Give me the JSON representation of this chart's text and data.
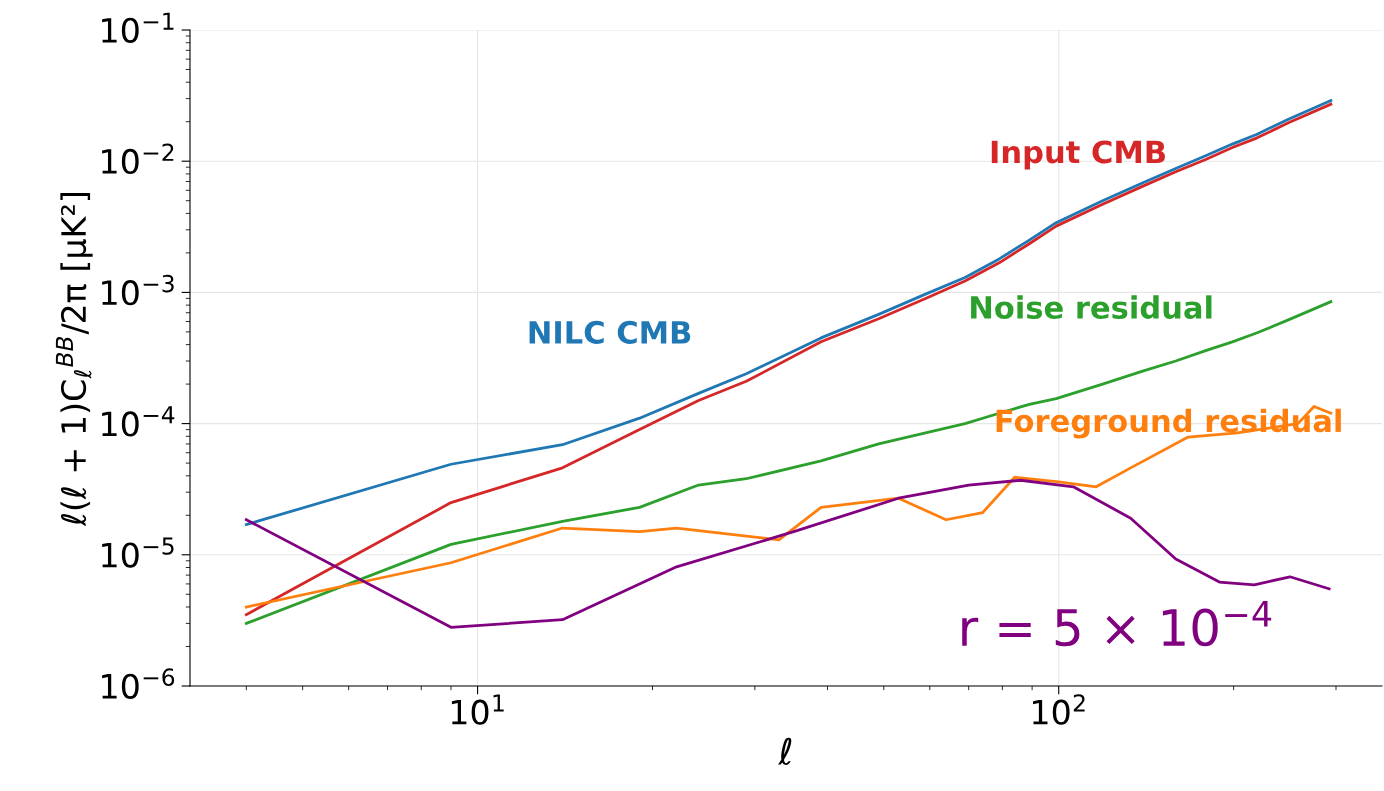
{
  "chart_data": {
    "type": "line",
    "log": "xy",
    "grid": true,
    "marker": "none",
    "line_style": "solid",
    "xlabel": "ℓ",
    "ylabel": "ℓ(ℓ + 1)C$_{ℓ}$$^{BB}$/2π [μK²]",
    "xlim": [
      3.2,
      360
    ],
    "ylim": [
      1e-06,
      0.1
    ],
    "xticks": [
      {
        "value": 10,
        "label": "10$^{1}$"
      },
      {
        "value": 100,
        "label": "10$^{2}$"
      }
    ],
    "yticks": [
      {
        "value": 1e-06,
        "label": "10$^{−6}$"
      },
      {
        "value": 1e-05,
        "label": "10$^{−5}$"
      },
      {
        "value": 0.0001,
        "label": "10$^{−4}$"
      },
      {
        "value": 0.001,
        "label": "10$^{−3}$"
      },
      {
        "value": 0.01,
        "label": "10$^{−2}$"
      },
      {
        "value": 0.1,
        "label": "10$^{−1}$"
      }
    ],
    "x": [
      4,
      9,
      14,
      19,
      24,
      29,
      39,
      49,
      59,
      69,
      79,
      89,
      99,
      119,
      139,
      159,
      179,
      199,
      219,
      249,
      294
    ],
    "series": [
      {
        "name": "Input CMB",
        "color": "#d62728",
        "values": [
          3.5e-06,
          2.5e-05,
          4.6e-05,
          9e-05,
          0.00015,
          0.00021,
          0.00042,
          0.00063,
          0.0009,
          0.00122,
          0.00168,
          0.00235,
          0.0032,
          0.0047,
          0.0064,
          0.0083,
          0.0103,
          0.0127,
          0.015,
          0.0197,
          0.0272
        ]
      },
      {
        "name": "NILC CMB",
        "color": "#1f77b4",
        "values": [
          1.7e-05,
          4.9e-05,
          6.9e-05,
          0.00011,
          0.00017,
          0.00024,
          0.00045,
          0.00068,
          0.00097,
          0.0013,
          0.0018,
          0.0025,
          0.0034,
          0.005,
          0.0068,
          0.0088,
          0.011,
          0.0135,
          0.016,
          0.021,
          0.029
        ]
      },
      {
        "name": "Noise residual",
        "color": "#2ca02c",
        "values": [
          3e-06,
          1.2e-05,
          1.8e-05,
          2.3e-05,
          3.4e-05,
          3.8e-05,
          5.2e-05,
          7e-05,
          8.5e-05,
          0.0001,
          0.00012,
          0.00014,
          0.000155,
          0.0002,
          0.00025,
          0.0003,
          0.00036,
          0.00042,
          0.00049,
          0.00062,
          0.00085
        ]
      },
      {
        "name": "Foreground residual",
        "color": "#ff7f0e",
        "x": [
          4,
          9,
          14,
          19,
          22,
          33,
          39,
          53,
          64,
          74,
          84,
          100,
          116,
          133,
          167,
          203,
          258,
          275,
          294
        ],
        "values": [
          4e-06,
          8.7e-06,
          1.6e-05,
          1.5e-05,
          1.6e-05,
          1.3e-05,
          2.3e-05,
          2.7e-05,
          1.85e-05,
          2.1e-05,
          3.9e-05,
          3.6e-05,
          3.3e-05,
          4.6e-05,
          7.9e-05,
          8.5e-05,
          0.0001,
          0.000135,
          0.00012
        ]
      },
      {
        "name": "r = 5 × 10$^{−4}$",
        "color": "#800080",
        "x": [
          4,
          9,
          14,
          22,
          35,
          53,
          70,
          86,
          106,
          133,
          159,
          189,
          217,
          250,
          292
        ],
        "values": [
          1.85e-05,
          2.8e-06,
          3.2e-06,
          8.1e-06,
          1.5e-05,
          2.7e-05,
          3.4e-05,
          3.7e-05,
          3.3e-05,
          1.9e-05,
          9.3e-06,
          6.2e-06,
          5.9e-06,
          6.8e-06,
          5.5e-06
        ]
      }
    ]
  }
}
